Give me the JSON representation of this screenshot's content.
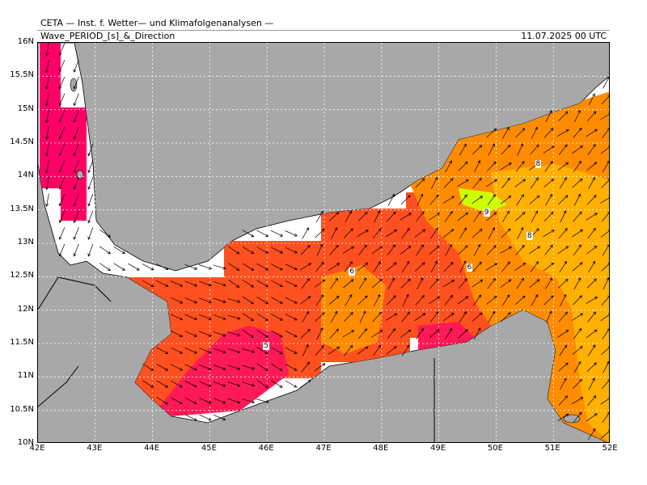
{
  "header": {
    "title": "CETA — Inst. f. Wetter— und Klimafolgenanalysen —",
    "subtitle": "Wave_PERIOD_[s]_&_Direction",
    "datetime": "11.07.2025 00 UTC"
  },
  "axes": {
    "lat_labels": [
      "16N",
      "15.5N",
      "15N",
      "14.5N",
      "14N",
      "13.5N",
      "13N",
      "12.5N",
      "12N",
      "11.5N",
      "11N",
      "10.5N",
      "10N"
    ],
    "lon_labels": [
      "42E",
      "43E",
      "44E",
      "45E",
      "46E",
      "47E",
      "48E",
      "49E",
      "50E",
      "51E",
      "52E"
    ],
    "lat_range": [
      10,
      16
    ],
    "lon_range": [
      42,
      52
    ]
  },
  "colors": {
    "land": "#a8a8a8",
    "sea_nodata": "#ffffff",
    "period_4": "#ff0066",
    "period_5": "#ff1a55",
    "period_6": "#ff5020",
    "period_7": "#ff8c00",
    "period_8": "#ffb000",
    "period_9": "#ccff00"
  },
  "contour_labels": [
    {
      "text": "5",
      "lon": 46.0,
      "lat": 11.45
    },
    {
      "text": "6",
      "lon": 47.5,
      "lat": 12.57
    },
    {
      "text": "6",
      "lon": 49.55,
      "lat": 12.62
    },
    {
      "text": "9",
      "lon": 49.85,
      "lat": 13.45
    },
    {
      "text": "8",
      "lon": 50.75,
      "lat": 14.17
    },
    {
      "text": "8",
      "lon": 50.6,
      "lat": 13.1
    }
  ]
}
